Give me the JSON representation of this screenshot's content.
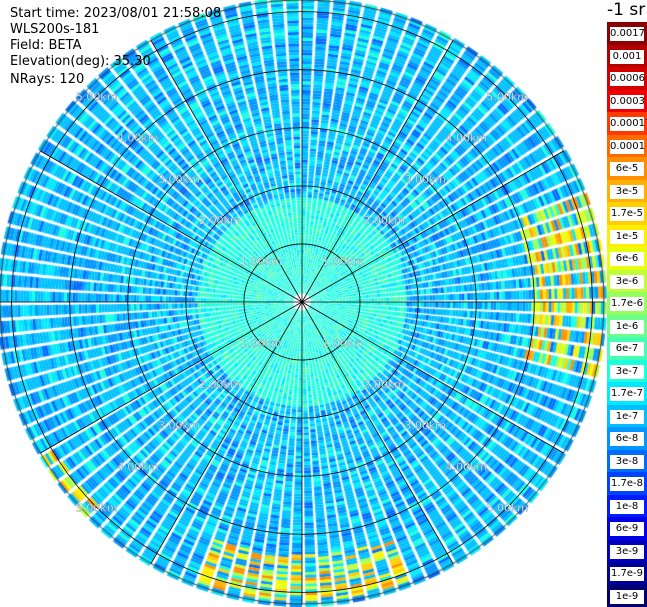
{
  "info": {
    "start_time": "Start time: 2023/08/01 21:58:08",
    "instrument": "WLS200s-181",
    "field": "Field: BETA",
    "elevation": "Elevation(deg): 35.30",
    "nrays": "NRays: 120"
  },
  "colorbar": {
    "unit": "-1 sr",
    "labels": [
      "0.0017",
      "0.001",
      "0.0006",
      "0.0003",
      "0.00017",
      "0.0001",
      "6e-5",
      "3e-5",
      "1.7e-5",
      "1e-5",
      "6e-6",
      "3e-6",
      "1.7e-6",
      "1e-6",
      "6e-7",
      "3e-7",
      "1.7e-7",
      "1e-7",
      "6e-8",
      "3e-8",
      "1.7e-8",
      "1e-8",
      "6e-9",
      "3e-9",
      "1.7e-9",
      "1e-9"
    ],
    "colors": [
      "#8b0000",
      "#b00000",
      "#d40000",
      "#f00000",
      "#ff3a00",
      "#ff6a00",
      "#ff8e00",
      "#ffb000",
      "#ffd000",
      "#ffee00",
      "#e8ff10",
      "#c0ff38",
      "#96ff60",
      "#6cff8a",
      "#44ffb4",
      "#1affde",
      "#00e8ff",
      "#00c0ff",
      "#0096ff",
      "#006cff",
      "#0044ff",
      "#001cff",
      "#0000e6",
      "#0000bf",
      "#000099",
      "#000073"
    ]
  },
  "chart_data": {
    "type": "heatmap",
    "projection": "polar PPI",
    "field": "BETA",
    "elevation_deg": 35.3,
    "n_rays": 120,
    "range_rings_km": [
      1,
      2,
      3,
      4,
      5
    ],
    "range_ring_labels": [
      "1.00km",
      "2.00km",
      "3.00km",
      "4.00km",
      "5.00km"
    ],
    "max_range_km": 5.2,
    "azimuth_spokes_deg": [
      0,
      30,
      60,
      90,
      120,
      150,
      180,
      210,
      240,
      270,
      300,
      330
    ],
    "colorbar_scale": "log",
    "colorbar_range": [
      1e-09,
      0.0017
    ],
    "dominant_value_range": [
      1e-07,
      3e-06
    ],
    "high_value_regions": [
      {
        "azimuth_deg": [
          70,
          105
        ],
        "range_km": [
          3.9,
          5.2
        ],
        "value_range": [
          1e-06,
          3e-05
        ]
      },
      {
        "azimuth_deg": [
          160,
          200
        ],
        "range_km": [
          4.3,
          5.1
        ],
        "value_range": [
          3e-06,
          3e-05
        ]
      },
      {
        "azimuth_deg": [
          225,
          240
        ],
        "range_km": [
          4.9,
          5.2
        ],
        "value_range": [
          3e-06,
          6e-05
        ]
      }
    ]
  }
}
